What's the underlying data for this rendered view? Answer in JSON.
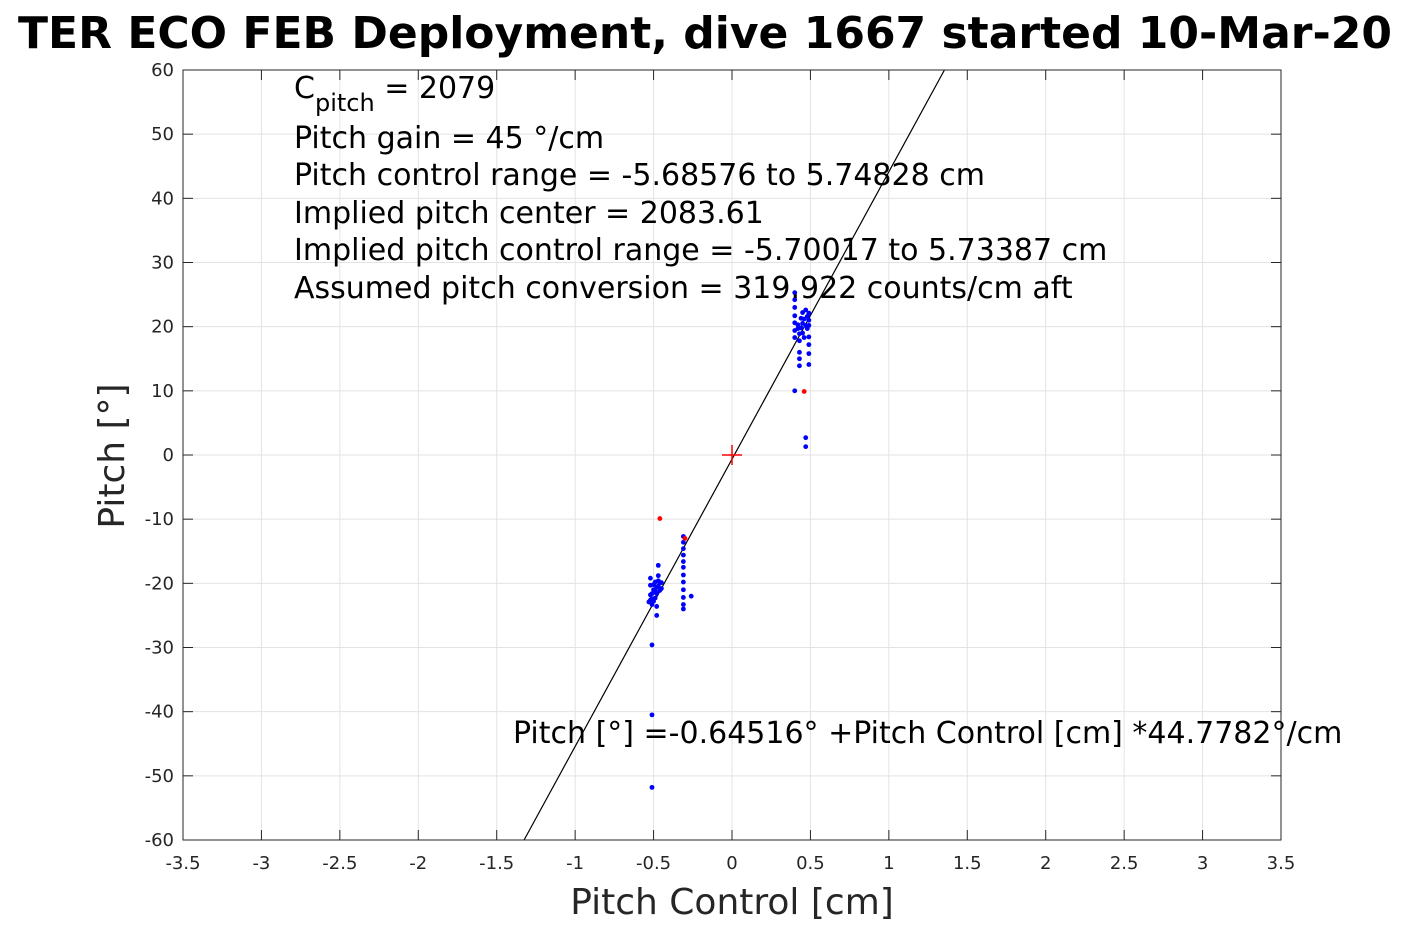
{
  "chart_data": {
    "type": "scatter",
    "title": "TER ECO FEB Deployment, dive 1667 started 10-Mar-20",
    "xlabel": "Pitch Control [cm]",
    "ylabel": "Pitch [°]",
    "xlim": [
      -3.5,
      3.5
    ],
    "ylim": [
      -60,
      60
    ],
    "xticks": [
      -3.5,
      -3,
      -2.5,
      -2,
      -1.5,
      -1,
      -0.5,
      0,
      0.5,
      1,
      1.5,
      2,
      2.5,
      3,
      3.5
    ],
    "xtick_labels": [
      "-3.5",
      "-3",
      "-2.5",
      "-2",
      "-1.5",
      "-1",
      "-0.5",
      "0",
      "0.5",
      "1",
      "1.5",
      "2",
      "2.5",
      "3",
      "3.5"
    ],
    "yticks": [
      -60,
      -50,
      -40,
      -30,
      -20,
      -10,
      0,
      10,
      20,
      30,
      40,
      50,
      60
    ],
    "ytick_labels": [
      "-60",
      "-50",
      "-40",
      "-30",
      "-20",
      "-10",
      "0",
      "10",
      "20",
      "30",
      "40",
      "50",
      "60"
    ],
    "grid": true,
    "annotations": {
      "cpitch_main": "C",
      "cpitch_sub": "pitch",
      "cpitch_value": " = 2079",
      "lines": [
        "Pitch gain = 45 °/cm",
        "Pitch control range = -5.68576 to 5.74828 cm",
        "Implied pitch center = 2083.61",
        "Implied pitch control range = -5.70017 to 5.73387 cm",
        "Assumed pitch conversion = 319.922 counts/cm aft"
      ],
      "equation": "Pitch [°] =-0.64516° +Pitch Control [cm] *44.7782°/cm"
    },
    "fit_line": {
      "intercept": -0.64516,
      "slope": 44.7782,
      "color": "#000000"
    },
    "center_marker": {
      "x": 0,
      "y": 0,
      "color": "#ff0000"
    },
    "series": [
      {
        "color": "#0000ff",
        "points": [
          [
            -0.52,
            -19.2
          ],
          [
            -0.52,
            -20.3
          ],
          [
            -0.52,
            -21.8
          ],
          [
            -0.52,
            -22.6
          ],
          [
            -0.53,
            -22.9
          ],
          [
            -0.51,
            -23.3
          ],
          [
            -0.51,
            -22.4
          ],
          [
            -0.51,
            -21.6
          ],
          [
            -0.5,
            -22.8
          ],
          [
            -0.5,
            -21.0
          ],
          [
            -0.5,
            -20.2
          ],
          [
            -0.49,
            -22.3
          ],
          [
            -0.49,
            -21.2
          ],
          [
            -0.49,
            -19.8
          ],
          [
            -0.48,
            -20.6
          ],
          [
            -0.48,
            -21.6
          ],
          [
            -0.48,
            -23.6
          ],
          [
            -0.48,
            -25.0
          ],
          [
            -0.47,
            -19.6
          ],
          [
            -0.47,
            -18.8
          ],
          [
            -0.47,
            -17.2
          ],
          [
            -0.47,
            -20.4
          ],
          [
            -0.46,
            -19.9
          ],
          [
            -0.46,
            -21.1
          ],
          [
            -0.45,
            -19.9
          ],
          [
            -0.45,
            -20.8
          ],
          [
            -0.51,
            -29.6
          ],
          [
            -0.51,
            -40.5
          ],
          [
            -0.51,
            -51.8
          ],
          [
            -0.31,
            -12.7
          ],
          [
            -0.31,
            -13.6
          ],
          [
            -0.31,
            -14.6
          ],
          [
            -0.31,
            -15.6
          ],
          [
            -0.31,
            -16.6
          ],
          [
            -0.31,
            -17.5
          ],
          [
            -0.31,
            -18.7
          ],
          [
            -0.31,
            -19.8
          ],
          [
            -0.31,
            -21.0
          ],
          [
            -0.31,
            -22.2
          ],
          [
            -0.31,
            -23.3
          ],
          [
            -0.31,
            -24.0
          ],
          [
            -0.26,
            -22.0
          ],
          [
            0.4,
            25.3
          ],
          [
            0.4,
            24.2
          ],
          [
            0.4,
            23.0
          ],
          [
            0.4,
            21.7
          ],
          [
            0.4,
            20.6
          ],
          [
            0.4,
            19.4
          ],
          [
            0.4,
            18.3
          ],
          [
            0.4,
            10.0
          ],
          [
            0.42,
            19.7
          ],
          [
            0.42,
            20.3
          ],
          [
            0.43,
            18.9
          ],
          [
            0.43,
            17.8
          ],
          [
            0.43,
            16.0
          ],
          [
            0.43,
            15.0
          ],
          [
            0.43,
            13.9
          ],
          [
            0.44,
            21.3
          ],
          [
            0.44,
            19.8
          ],
          [
            0.45,
            20.5
          ],
          [
            0.45,
            19.0
          ],
          [
            0.45,
            22.2
          ],
          [
            0.46,
            21.2
          ],
          [
            0.46,
            18.3
          ],
          [
            0.47,
            20.2
          ],
          [
            0.47,
            22.6
          ],
          [
            0.47,
            2.7
          ],
          [
            0.47,
            1.3
          ],
          [
            0.48,
            21.6
          ],
          [
            0.48,
            19.7
          ],
          [
            0.49,
            22.1
          ],
          [
            0.49,
            21.0
          ],
          [
            0.49,
            20.2
          ],
          [
            0.49,
            18.4
          ],
          [
            0.49,
            17.2
          ],
          [
            0.49,
            15.8
          ],
          [
            0.49,
            14.1
          ]
        ]
      },
      {
        "color": "#ff0000",
        "points": [
          [
            -0.46,
            -9.9
          ],
          [
            -0.3,
            -13.0
          ],
          [
            0.46,
            9.9
          ]
        ]
      }
    ]
  }
}
